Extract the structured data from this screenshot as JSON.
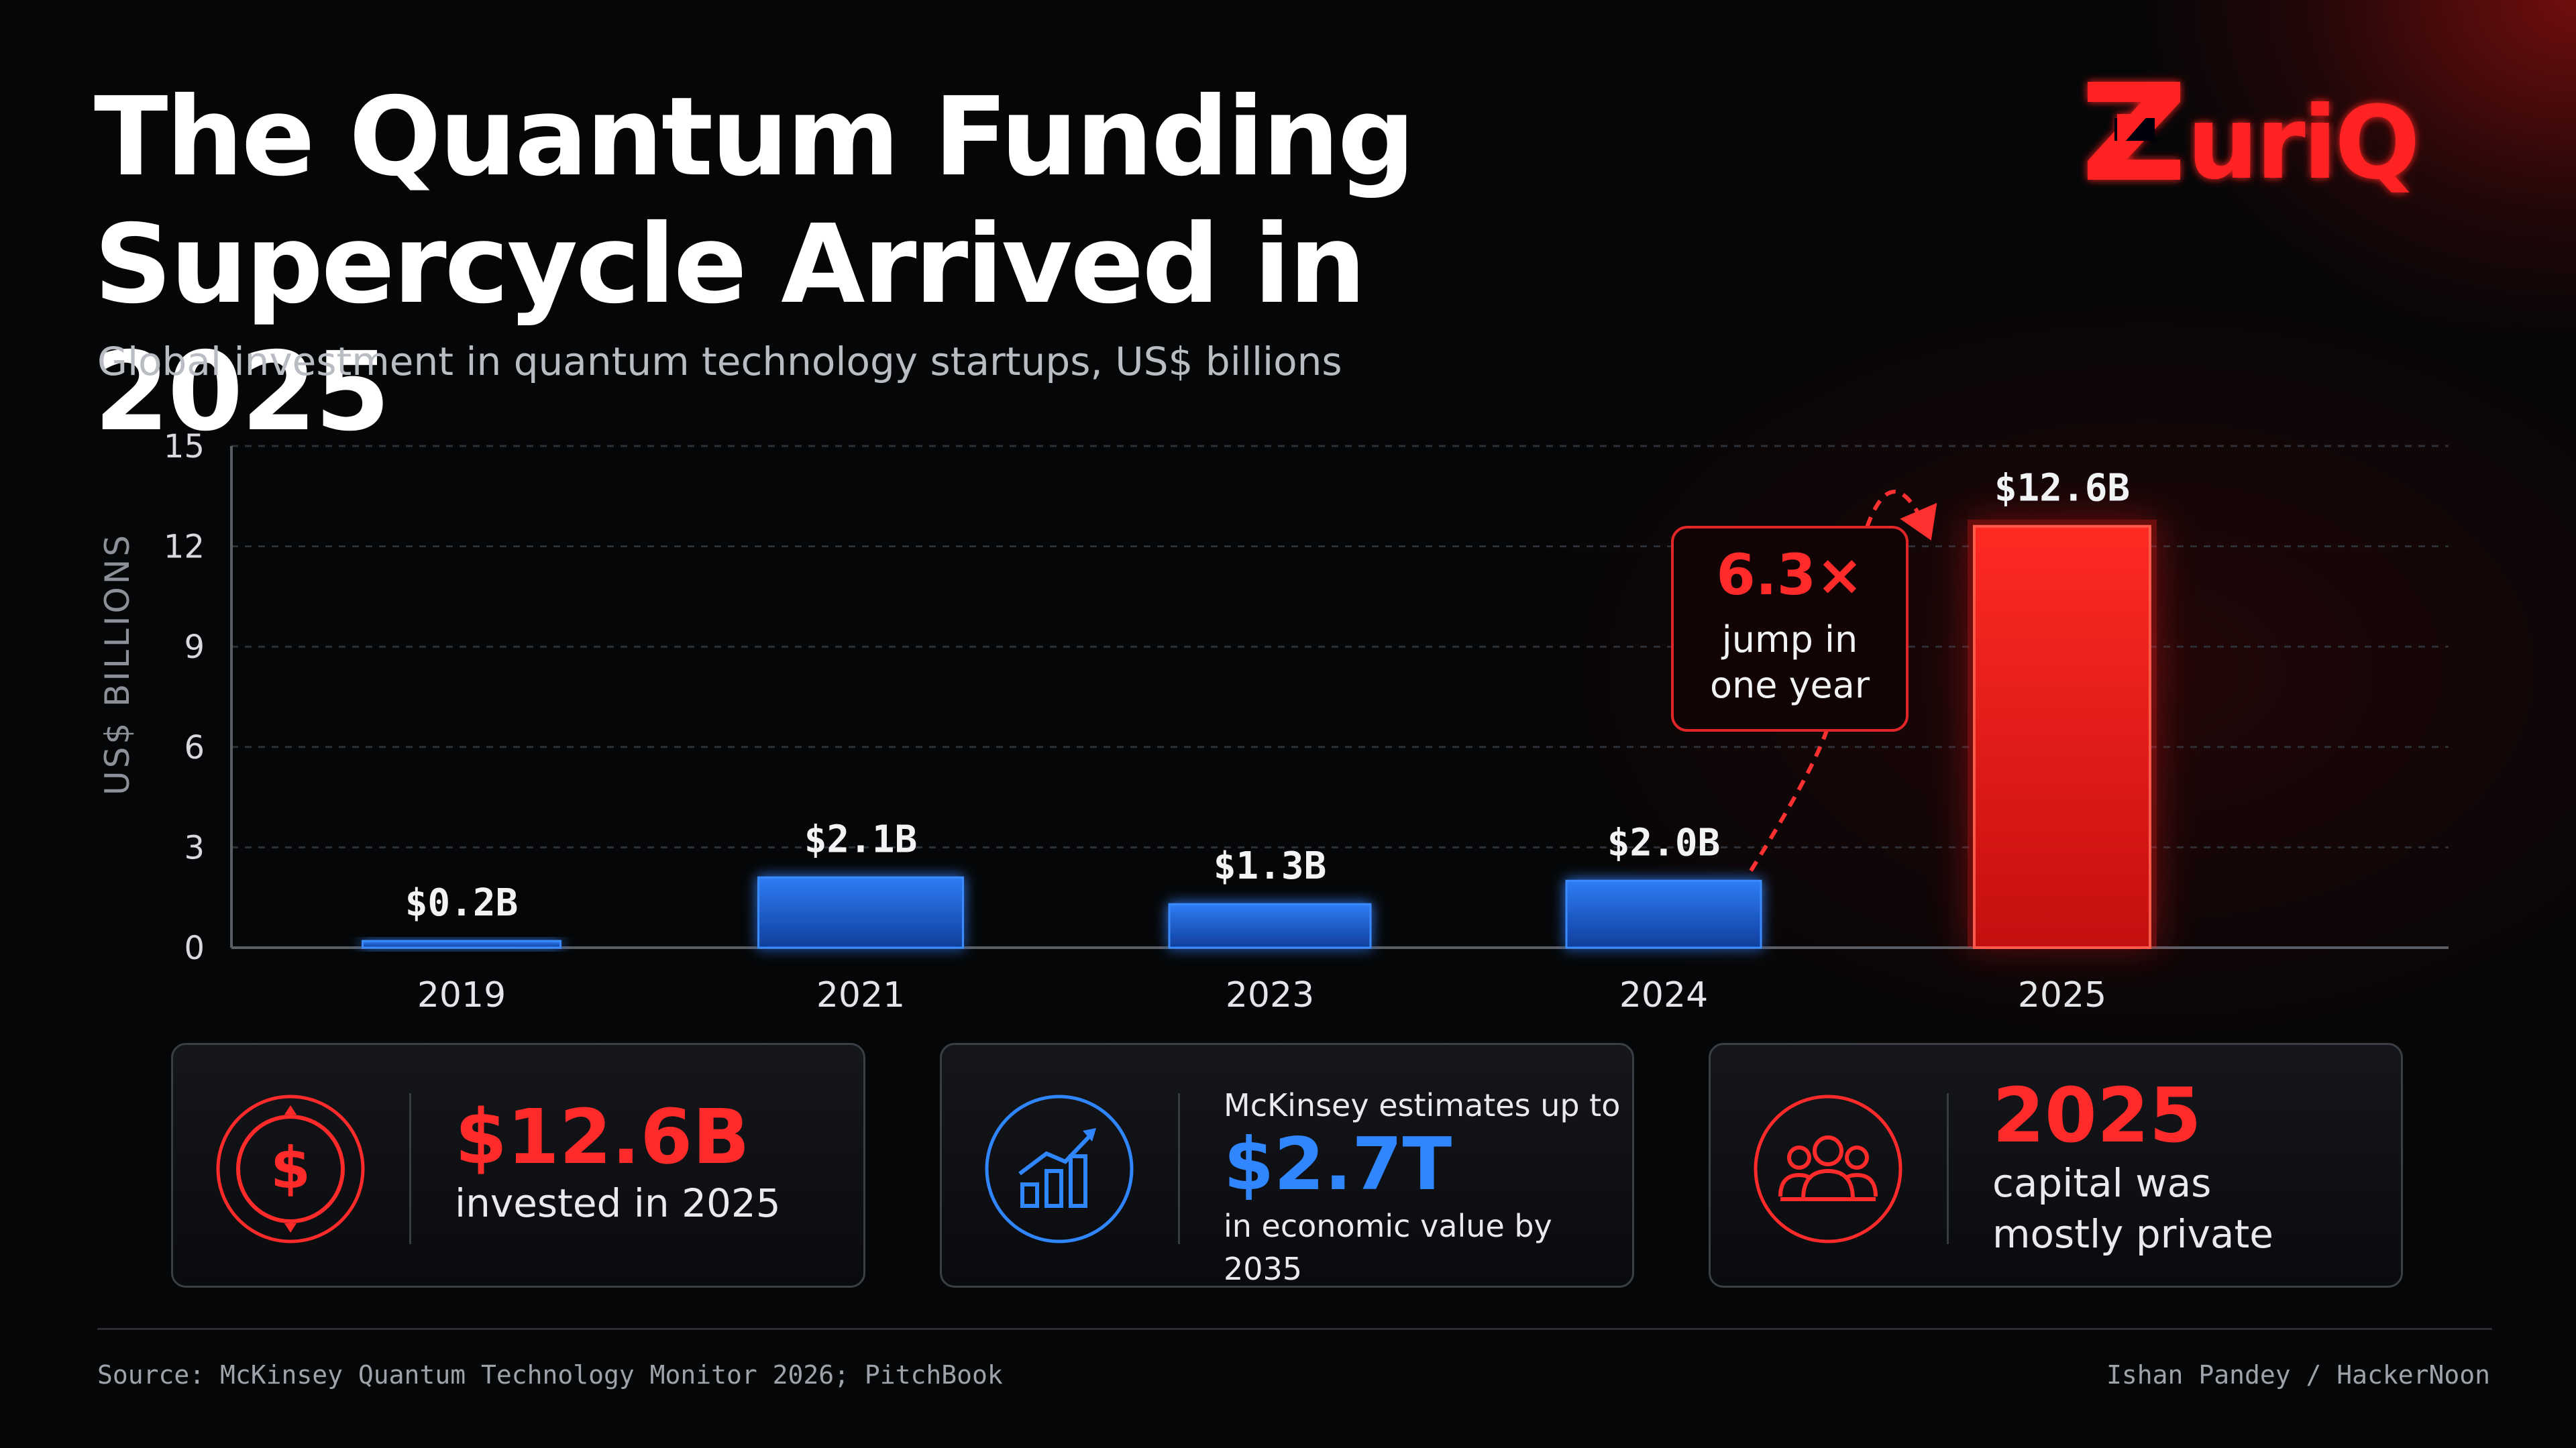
{
  "brand": {
    "logo_text": "ZuriQ",
    "accent": "#ff2323"
  },
  "title_line1": "The Quantum Funding",
  "title_line2": "Supercycle Arrived in 2025",
  "subtitle": "Global investment in quantum technology startups, US$ billions",
  "chart_data": {
    "type": "bar",
    "categories": [
      "2019",
      "2021",
      "2023",
      "2024",
      "2025"
    ],
    "values": [
      0.2,
      2.1,
      1.3,
      2.0,
      12.6
    ],
    "value_labels": [
      "$0.2B",
      "$2.1B",
      "$1.3B",
      "$2.0B",
      "$12.6B"
    ],
    "ylabel": "US$ BILLIONS",
    "ylim": [
      0,
      15
    ],
    "yticks": [
      0,
      3,
      6,
      9,
      12,
      15
    ],
    "grid": true,
    "bar_colors": [
      "#1f63d6",
      "#1f63d6",
      "#1f63d6",
      "#1f63d6",
      "#ff2020"
    ],
    "annotation": {
      "value": "6.3×",
      "line1": "jump in",
      "line2": "one year",
      "from": "2024",
      "to": "2025"
    }
  },
  "cards": [
    {
      "icon": "dollar-icon",
      "headline": "$12.6B",
      "caption": "invested in 2025",
      "color": "#ff2a2a"
    },
    {
      "icon": "growth-chart-icon",
      "pre": "McKinsey estimates up to",
      "headline": "$2.7T",
      "caption": "in economic value by 2035",
      "color": "#2f86ff"
    },
    {
      "icon": "people-icon",
      "headline": "2025",
      "caption_line1": "capital was",
      "caption_line2": "mostly private",
      "color": "#ff2a2a"
    }
  ],
  "source": "Source: McKinsey Quantum Technology Monitor 2026; PitchBook",
  "credit": "Ishan Pandey / HackerNoon"
}
